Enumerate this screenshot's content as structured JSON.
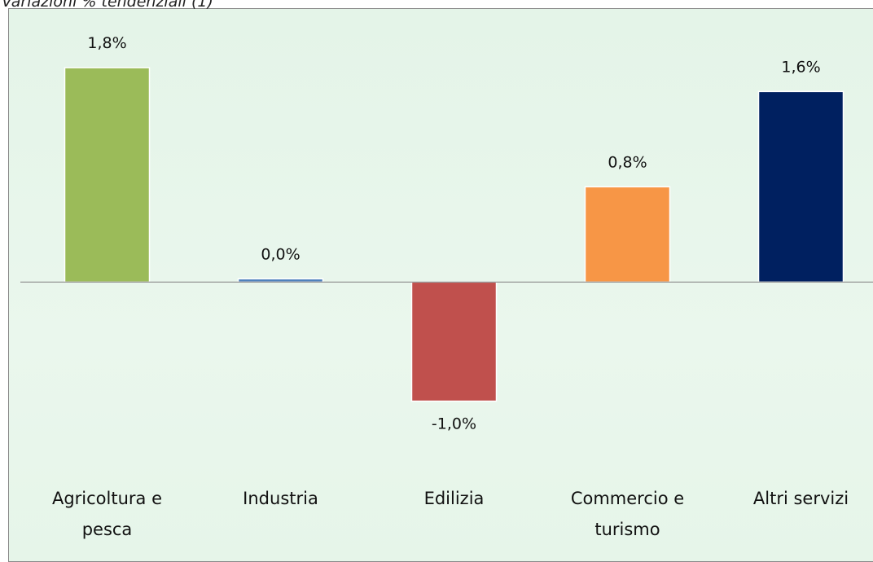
{
  "chart_data": {
    "type": "bar",
    "subtitle": "Variazioni % tendenziali (1)",
    "categories": [
      "Agricoltura e pesca",
      "Industria",
      "Edilizia",
      "Commercio e turismo",
      "Altri servizi"
    ],
    "values": [
      1.8,
      0.0,
      -1.0,
      0.8,
      1.6
    ],
    "value_labels": [
      "1,8%",
      "0,0%",
      "-1,0%",
      "0,8%",
      "1,6%"
    ],
    "colors": [
      "#9bbb59",
      "#4f81bd",
      "#c0504d",
      "#f79646",
      "#002060"
    ],
    "ylim": [
      -1.4,
      2.3
    ]
  }
}
